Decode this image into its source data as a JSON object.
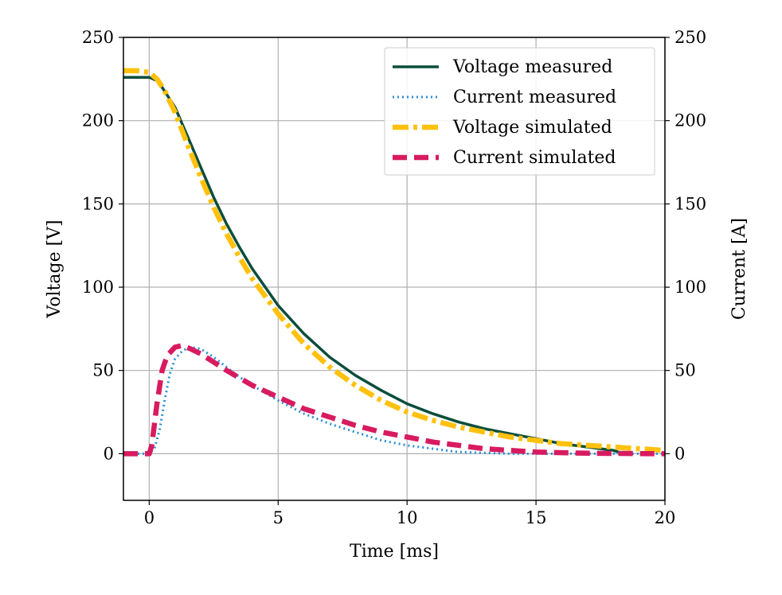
{
  "chart_data": {
    "type": "line",
    "xlabel": "Time [ms]",
    "ylabel": "Voltage [V]",
    "ylabel_right": "Current [A]",
    "xlim": [
      -1,
      20
    ],
    "ylim": [
      -28,
      250
    ],
    "ylim_right": [
      -28,
      250
    ],
    "x_ticks": [
      0,
      5,
      10,
      15,
      20
    ],
    "y_ticks": [
      0,
      50,
      100,
      150,
      200,
      250
    ],
    "y_ticks_right": [
      0,
      50,
      100,
      150,
      200,
      250
    ],
    "grid": true,
    "legend_position": "top-right",
    "series": [
      {
        "name": "Voltage measured",
        "axis": "left",
        "color": "#0b4d3c",
        "style": "solid",
        "x": [
          -1.0,
          -0.5,
          0.0,
          0.3,
          0.5,
          1.0,
          1.5,
          2.0,
          2.5,
          3.0,
          3.5,
          4.0,
          4.5,
          5.0,
          6.0,
          7.0,
          8.0,
          9.0,
          10.0,
          11.0,
          12.0,
          13.0,
          14.0,
          15.0,
          16.0,
          17.0,
          18.0,
          18.2
        ],
        "y": [
          226,
          226,
          226,
          224,
          220,
          208,
          190,
          172,
          154,
          138,
          124,
          111,
          100,
          89,
          72,
          58,
          47,
          38,
          30,
          24,
          19,
          15,
          12,
          9,
          6,
          4,
          2,
          1
        ]
      },
      {
        "name": "Current measured",
        "axis": "right",
        "color": "#2b8ed8",
        "style": "dotted",
        "x": [
          -1.0,
          0.0,
          0.2,
          0.4,
          0.6,
          0.8,
          1.0,
          1.3,
          1.6,
          2.0,
          2.5,
          3.0,
          3.5,
          4.0,
          5.0,
          6.0,
          7.0,
          8.0,
          9.0,
          10.0,
          11.0,
          12.0,
          13.0,
          14.0,
          15.0,
          16.0,
          17.0,
          18.0,
          19.0,
          20.0
        ],
        "y": [
          0,
          0,
          3,
          14,
          32,
          48,
          57,
          62,
          64,
          63,
          58,
          52,
          46,
          41,
          32,
          24,
          18,
          13,
          8,
          5,
          3,
          1,
          0.5,
          0,
          0,
          0,
          0,
          0,
          0,
          0
        ]
      },
      {
        "name": "Voltage simulated",
        "axis": "left",
        "color": "#ffc10e",
        "style": "dashdot",
        "x": [
          -1.0,
          -0.5,
          0.0,
          0.3,
          0.6,
          1.0,
          1.5,
          2.0,
          2.5,
          3.0,
          3.5,
          4.0,
          5.0,
          6.0,
          7.0,
          8.0,
          9.0,
          10.0,
          11.0,
          12.0,
          13.0,
          14.0,
          15.0,
          16.0,
          17.0,
          18.0,
          19.0,
          20.0
        ],
        "y": [
          230,
          230,
          229,
          225,
          218,
          205,
          185,
          166,
          148,
          132,
          118,
          105,
          84,
          66,
          52,
          41,
          32,
          25,
          20,
          16,
          13,
          10,
          8,
          6,
          5,
          4,
          3,
          2
        ]
      },
      {
        "name": "Current simulated",
        "axis": "right",
        "color": "#d81b60",
        "style": "dashed",
        "x": [
          -1.0,
          0.0,
          0.1,
          0.3,
          0.5,
          0.7,
          1.0,
          1.3,
          1.6,
          2.0,
          2.5,
          3.0,
          4.0,
          5.0,
          6.0,
          7.0,
          8.0,
          9.0,
          10.0,
          11.0,
          12.0,
          13.0,
          14.0,
          15.0,
          16.0,
          17.0,
          18.0,
          19.0,
          20.0
        ],
        "y": [
          0,
          0,
          5,
          30,
          50,
          59,
          64,
          65,
          63,
          60,
          55,
          50,
          41,
          34,
          27,
          22,
          17,
          13,
          10,
          7,
          5,
          3,
          2,
          1,
          0.6,
          0.3,
          0.2,
          0.1,
          0
        ]
      }
    ]
  }
}
